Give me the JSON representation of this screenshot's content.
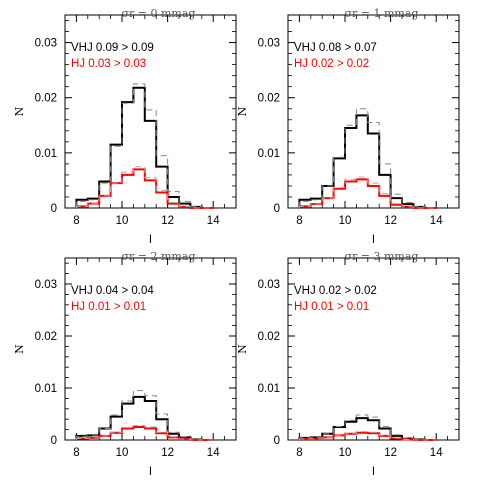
{
  "chart_data": [
    {
      "type": "step",
      "title": "σr = 0 mmag",
      "xlabel": "I",
      "ylabel": "N",
      "xlim": [
        7.5,
        15
      ],
      "ylim": [
        0,
        0.035
      ],
      "xticks": [
        "8",
        "10",
        "12",
        "14"
      ],
      "yticks": [
        "0",
        "0.01",
        "0.02",
        "0.03"
      ],
      "annotations": [
        {
          "text": "VHJ 0.09 > 0.09",
          "color": "#000000"
        },
        {
          "text": "HJ 0.03 > 0.03",
          "color": "#ff0000"
        }
      ],
      "bin_edges": [
        8,
        8.5,
        9,
        9.5,
        10,
        10.5,
        11,
        11.5,
        12,
        12.5,
        13,
        13.5,
        14
      ],
      "series": [
        {
          "color": "#000000",
          "style": "solid",
          "values": [
            0.0015,
            0.0017,
            0.0048,
            0.0115,
            0.0192,
            0.0218,
            0.0158,
            0.0075,
            0.002,
            0.0008,
            0.0002,
            0.0
          ]
        },
        {
          "color": "#888888",
          "style": "dashed",
          "values": [
            0.0012,
            0.0015,
            0.0045,
            0.0112,
            0.019,
            0.0225,
            0.0178,
            0.0095,
            0.003,
            0.0012,
            0.0003,
            0.0
          ]
        },
        {
          "color": "#ff0000",
          "style": "solid",
          "values": [
            0.0003,
            0.0008,
            0.0022,
            0.0045,
            0.006,
            0.007,
            0.005,
            0.0028,
            0.0008,
            0.0002,
            0.0,
            0.0
          ]
        },
        {
          "color": "#aaaaaa",
          "style": "dashed",
          "values": [
            0.0003,
            0.0008,
            0.0022,
            0.0045,
            0.0065,
            0.0075,
            0.0055,
            0.0032,
            0.001,
            0.0003,
            0.0,
            0.0
          ]
        }
      ]
    },
    {
      "type": "step",
      "title": "σr = 1 mmag",
      "xlabel": "I",
      "ylabel": "N",
      "xlim": [
        7.5,
        15
      ],
      "ylim": [
        0,
        0.035
      ],
      "xticks": [
        "8",
        "10",
        "12",
        "14"
      ],
      "yticks": [
        "0",
        "0.01",
        "0.02",
        "0.03"
      ],
      "annotations": [
        {
          "text": "VHJ 0.08 > 0.07",
          "color": "#000000"
        },
        {
          "text": "HJ 0.02 > 0.02",
          "color": "#ff0000"
        }
      ],
      "bin_edges": [
        8,
        8.5,
        9,
        9.5,
        10,
        10.5,
        11,
        11.5,
        12,
        12.5,
        13,
        13.5,
        14
      ],
      "series": [
        {
          "color": "#000000",
          "style": "solid",
          "values": [
            0.0015,
            0.0017,
            0.004,
            0.009,
            0.0145,
            0.0168,
            0.0135,
            0.006,
            0.0018,
            0.0007,
            0.0002,
            0.0
          ]
        },
        {
          "color": "#888888",
          "style": "dashed",
          "values": [
            0.0012,
            0.0015,
            0.004,
            0.0092,
            0.015,
            0.018,
            0.0155,
            0.008,
            0.0025,
            0.001,
            0.0003,
            0.0
          ]
        },
        {
          "color": "#ff0000",
          "style": "solid",
          "values": [
            0.0003,
            0.0007,
            0.0018,
            0.0035,
            0.0048,
            0.0052,
            0.004,
            0.0022,
            0.0006,
            0.0002,
            0.0,
            0.0
          ]
        },
        {
          "color": "#aaaaaa",
          "style": "dashed",
          "values": [
            0.0003,
            0.0007,
            0.0018,
            0.0037,
            0.0052,
            0.0056,
            0.0045,
            0.0026,
            0.0008,
            0.0002,
            0.0,
            0.0
          ]
        }
      ]
    },
    {
      "type": "step",
      "title": "σr = 2 mmag",
      "xlabel": "I",
      "ylabel": "N",
      "xlim": [
        7.5,
        15
      ],
      "ylim": [
        0,
        0.035
      ],
      "xticks": [
        "8",
        "10",
        "12",
        "14"
      ],
      "yticks": [
        "0",
        "0.01",
        "0.02",
        "0.03"
      ],
      "annotations": [
        {
          "text": "VHJ 0.04 > 0.04",
          "color": "#000000"
        },
        {
          "text": "HJ 0.01 > 0.01",
          "color": "#ff0000"
        }
      ],
      "bin_edges": [
        8,
        8.5,
        9,
        9.5,
        10,
        10.5,
        11,
        11.5,
        12,
        12.5,
        13,
        13.5,
        14
      ],
      "series": [
        {
          "color": "#000000",
          "style": "solid",
          "values": [
            0.0008,
            0.0009,
            0.0022,
            0.0045,
            0.007,
            0.0083,
            0.0075,
            0.004,
            0.0012,
            0.0005,
            0.0001,
            0.0
          ]
        },
        {
          "color": "#888888",
          "style": "dashed",
          "values": [
            0.0007,
            0.0008,
            0.0022,
            0.0048,
            0.0075,
            0.0095,
            0.0085,
            0.005,
            0.0015,
            0.0006,
            0.0001,
            0.0
          ]
        },
        {
          "color": "#ff0000",
          "style": "solid",
          "values": [
            0.0003,
            0.0004,
            0.0008,
            0.0014,
            0.0022,
            0.0025,
            0.0022,
            0.0013,
            0.0005,
            0.0002,
            0.0,
            0.0
          ]
        },
        {
          "color": "#aaaaaa",
          "style": "dashed",
          "values": [
            0.0003,
            0.0004,
            0.0008,
            0.0015,
            0.0024,
            0.0028,
            0.0025,
            0.0015,
            0.0006,
            0.0002,
            0.0,
            0.0
          ]
        }
      ]
    },
    {
      "type": "step",
      "title": "σr = 3 mmag",
      "xlabel": "I",
      "ylabel": "N",
      "xlim": [
        7.5,
        15
      ],
      "ylim": [
        0,
        0.035
      ],
      "xticks": [
        "8",
        "10",
        "12",
        "14"
      ],
      "yticks": [
        "0",
        "0.01",
        "0.02",
        "0.03"
      ],
      "annotations": [
        {
          "text": "VHJ 0.02 > 0.02",
          "color": "#000000"
        },
        {
          "text": "HJ 0.01 > 0.01",
          "color": "#ff0000"
        }
      ],
      "bin_edges": [
        8,
        8.5,
        9,
        9.5,
        10,
        10.5,
        11,
        11.5,
        12,
        12.5,
        13,
        13.5,
        14
      ],
      "series": [
        {
          "color": "#000000",
          "style": "solid",
          "values": [
            0.0004,
            0.0005,
            0.0012,
            0.0025,
            0.0035,
            0.0042,
            0.0038,
            0.0022,
            0.0008,
            0.0003,
            0.0001,
            0.0
          ]
        },
        {
          "color": "#888888",
          "style": "dashed",
          "values": [
            0.0004,
            0.0005,
            0.0012,
            0.0026,
            0.0038,
            0.0048,
            0.0044,
            0.0026,
            0.001,
            0.0004,
            0.0001,
            0.0
          ]
        },
        {
          "color": "#ff0000",
          "style": "solid",
          "values": [
            0.0002,
            0.0002,
            0.0005,
            0.0009,
            0.0012,
            0.0014,
            0.0013,
            0.0008,
            0.0003,
            0.0001,
            0.0,
            0.0
          ]
        },
        {
          "color": "#aaaaaa",
          "style": "dashed",
          "values": [
            0.0002,
            0.0002,
            0.0005,
            0.0009,
            0.0013,
            0.0016,
            0.0015,
            0.0009,
            0.0004,
            0.0001,
            0.0,
            0.0
          ]
        }
      ]
    }
  ]
}
